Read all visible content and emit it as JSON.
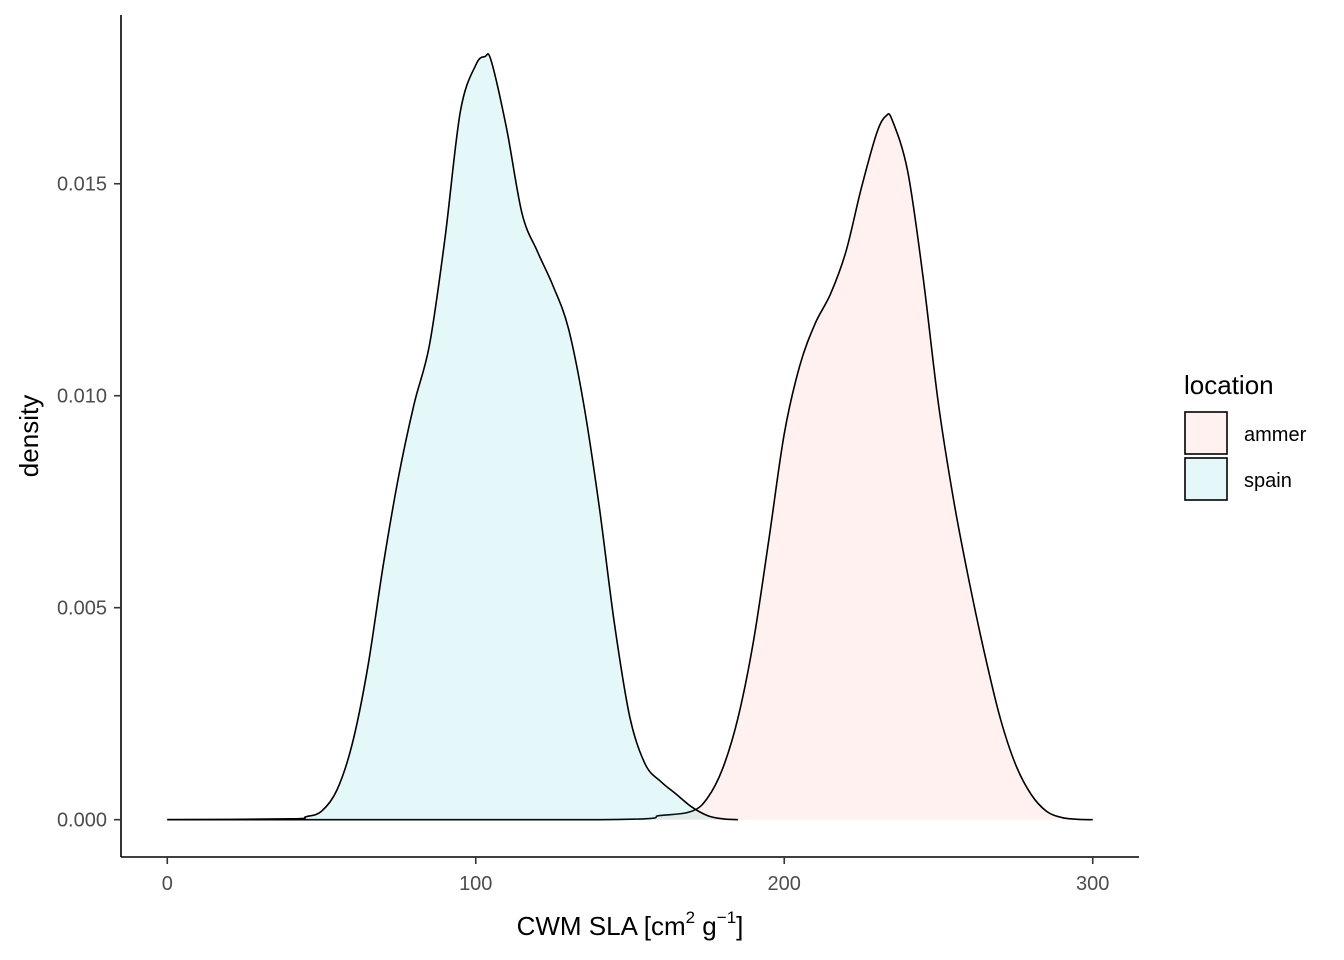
{
  "chart_data": {
    "type": "area",
    "subtype": "density",
    "title": "",
    "xlabel": "CWM SLA [cm² g⁻¹]",
    "xlabel_parts": {
      "base": "CWM SLA [cm",
      "sup1": "2",
      "mid": " g",
      "sup2": "−1",
      "end": "]"
    },
    "ylabel": "density",
    "xlim": [
      -15,
      315
    ],
    "ylim": [
      -0.00088,
      0.01898
    ],
    "xticks": [
      0,
      100,
      200,
      300
    ],
    "xtick_labels": [
      "0",
      "100",
      "200",
      "300"
    ],
    "yticks": [
      0.0,
      0.005,
      0.01,
      0.015
    ],
    "ytick_labels": [
      "0.000",
      "0.005",
      "0.010",
      "0.015"
    ],
    "grid": false,
    "legend": {
      "title": "location",
      "placement": "right",
      "entries": [
        "ammer",
        "spain"
      ]
    },
    "series": [
      {
        "name": "ammer",
        "fill": "#F8766D",
        "fill_opacity": 0.1,
        "x": [
          0,
          140,
          160,
          170,
          175,
          180,
          185,
          190,
          195,
          200,
          205,
          210,
          215,
          220,
          225,
          230,
          233,
          235,
          240,
          245,
          250,
          255,
          260,
          265,
          270,
          275,
          280,
          285,
          290,
          295,
          300
        ],
        "y": [
          0,
          0,
          0.0001,
          0.0002,
          0.0005,
          0.0012,
          0.0024,
          0.0042,
          0.0066,
          0.0091,
          0.0107,
          0.0117,
          0.0124,
          0.0134,
          0.0149,
          0.0162,
          0.0166,
          0.0165,
          0.0153,
          0.0128,
          0.0098,
          0.0075,
          0.0056,
          0.0039,
          0.0024,
          0.0013,
          0.0006,
          0.0002,
          5e-05,
          1e-05,
          0
        ]
      },
      {
        "name": "spain",
        "fill": "#00BFC4",
        "fill_opacity": 0.1,
        "x": [
          0,
          40,
          45,
          50,
          55,
          60,
          65,
          70,
          75,
          80,
          85,
          90,
          95,
          100,
          103,
          105,
          110,
          115,
          120,
          125,
          130,
          135,
          140,
          145,
          150,
          155,
          160,
          165,
          170,
          175,
          180,
          185
        ],
        "y": [
          0,
          2e-05,
          7e-05,
          0.0002,
          0.0007,
          0.0018,
          0.0036,
          0.006,
          0.0081,
          0.0098,
          0.0112,
          0.0137,
          0.0167,
          0.0178,
          0.018,
          0.0179,
          0.0163,
          0.0143,
          0.0134,
          0.0126,
          0.0116,
          0.0098,
          0.0074,
          0.0046,
          0.0024,
          0.0013,
          0.0009,
          0.0006,
          0.0003,
          0.0001,
          2e-05,
          0
        ]
      }
    ]
  }
}
